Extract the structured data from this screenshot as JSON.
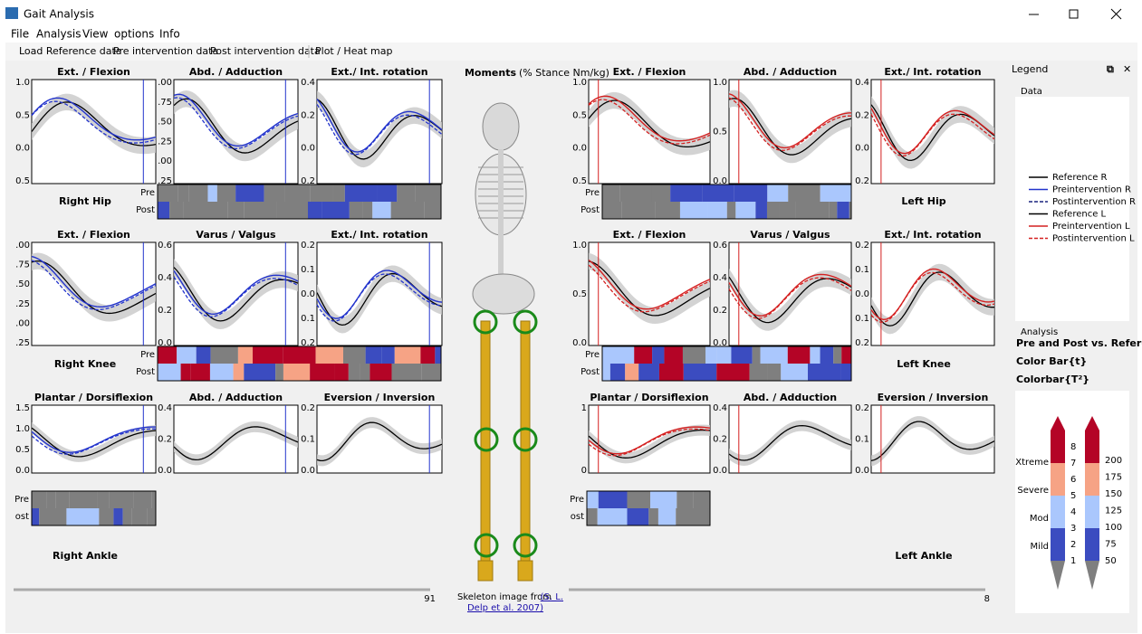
{
  "window": {
    "title": "Gait Analysis"
  },
  "menu": [
    "File",
    "Analysis",
    "View",
    "options",
    "Info"
  ],
  "toolbar": [
    "Load Reference data",
    "Pre intervention data",
    "Post intervention data",
    "Plot / Heat map"
  ],
  "center": {
    "title": "Moments",
    "subtitle": "(% Stance Nm/kg)"
  },
  "left": {
    "frame": "91",
    "rows": [
      {
        "label": "Right Hip",
        "heatmap": [
          "Pre",
          "Post"
        ],
        "plots": [
          {
            "title": "Ext. / Flexion",
            "ticks": [
              "1.0",
              "0.5",
              "0.0",
              "0.5"
            ]
          },
          {
            "title": "Abd. / Adduction",
            "ticks": [
              ".00",
              ".75",
              ".50",
              ".25",
              ".00",
              ".25"
            ]
          },
          {
            "title": "Ext./ Int. rotation",
            "ticks": [
              "0.4",
              "0.2",
              "0.0",
              "0.2"
            ]
          }
        ]
      },
      {
        "label": "Right Knee",
        "heatmap": [
          "Pre",
          "Post"
        ],
        "plots": [
          {
            "title": "Ext. / Flexion",
            "ticks": [
              ".00",
              ".75",
              ".50",
              ".25",
              ".00",
              ".25"
            ]
          },
          {
            "title": "Varus / Valgus",
            "ticks": [
              "0.6",
              "0.4",
              "0.2",
              "0.0"
            ]
          },
          {
            "title": "Ext./ Int. rotation",
            "ticks": [
              "0.2",
              "0.1",
              "0.0",
              "0.1",
              "0.2"
            ]
          }
        ]
      },
      {
        "label": "Right Ankle",
        "heatmap": [
          "Pre",
          "ost"
        ],
        "plots": [
          {
            "title": "Plantar / Dorsiflexion",
            "ticks": [
              "1.5",
              "1.0",
              "0.5",
              "0.0"
            ]
          },
          {
            "title": "Abd. / Adduction",
            "ticks": [
              "0.4",
              "0.2",
              "0.0"
            ]
          },
          {
            "title": "Eversion / Inversion",
            "ticks": [
              "0.2",
              "0.1",
              "0.0"
            ]
          }
        ]
      }
    ]
  },
  "right": {
    "frame": "8",
    "rows": [
      {
        "label": "Left Hip",
        "heatmap": [
          "Pre",
          "Post"
        ],
        "plots": [
          {
            "title": "Ext. / Flexion",
            "ticks": [
              "1.0",
              "0.5",
              "0.0",
              "0.5"
            ]
          },
          {
            "title": "Abd. / Adduction",
            "ticks": [
              "1.0",
              "0.5",
              "0.0"
            ]
          },
          {
            "title": "Ext./ Int. rotation",
            "ticks": [
              "0.4",
              "0.2",
              "0.0",
              "0.2"
            ]
          }
        ]
      },
      {
        "label": "Left Knee",
        "heatmap": [
          "Pre",
          "Post"
        ],
        "plots": [
          {
            "title": "Ext. / Flexion",
            "ticks": [
              "1.0",
              "0.5",
              "0.0"
            ]
          },
          {
            "title": "Varus / Valgus",
            "ticks": [
              "0.6",
              "0.4",
              "0.2",
              "0.0"
            ]
          },
          {
            "title": "Ext./ Int. rotation",
            "ticks": [
              "0.2",
              "0.1",
              "0.0",
              "0.1",
              "0.2"
            ]
          }
        ]
      },
      {
        "label": "Left Ankle",
        "heatmap": [
          "Pre",
          "ost"
        ],
        "plots": [
          {
            "title": "Plantar / Dorsiflexion",
            "ticks": [
              "1",
              "0"
            ]
          },
          {
            "title": "Abd. / Adduction",
            "ticks": [
              "0.4",
              "0.2",
              "0.0"
            ]
          },
          {
            "title": "Eversion / Inversion",
            "ticks": [
              "0.2",
              "0.1",
              "0.0"
            ]
          }
        ]
      }
    ]
  },
  "credit": {
    "text": "Skeleton image from",
    "link": [
      "(S. L.",
      "Delp et al. 2007)"
    ]
  },
  "legend_panel": {
    "title": "Legend",
    "data_group": "Data",
    "entries": [
      "Reference R",
      "Preintervention R",
      "Postintervention R",
      "Reference L",
      "Preintervention L",
      "Postintervention L"
    ],
    "analysis_group": "Analysis",
    "analysis_items": [
      "Pre and Post vs. Refere",
      "Color Bar{t}",
      "Colorbar{T²}"
    ],
    "colorbar_t": {
      "ticks": [
        "1",
        "2",
        "3",
        "4",
        "5",
        "6",
        "7",
        "8"
      ],
      "levels": [
        "Mild",
        "Mod",
        "Severe",
        "Xtreme"
      ]
    },
    "colorbar_T2": {
      "ticks": [
        "50",
        "75",
        "100",
        "125",
        "150",
        "175",
        "200"
      ]
    }
  }
}
